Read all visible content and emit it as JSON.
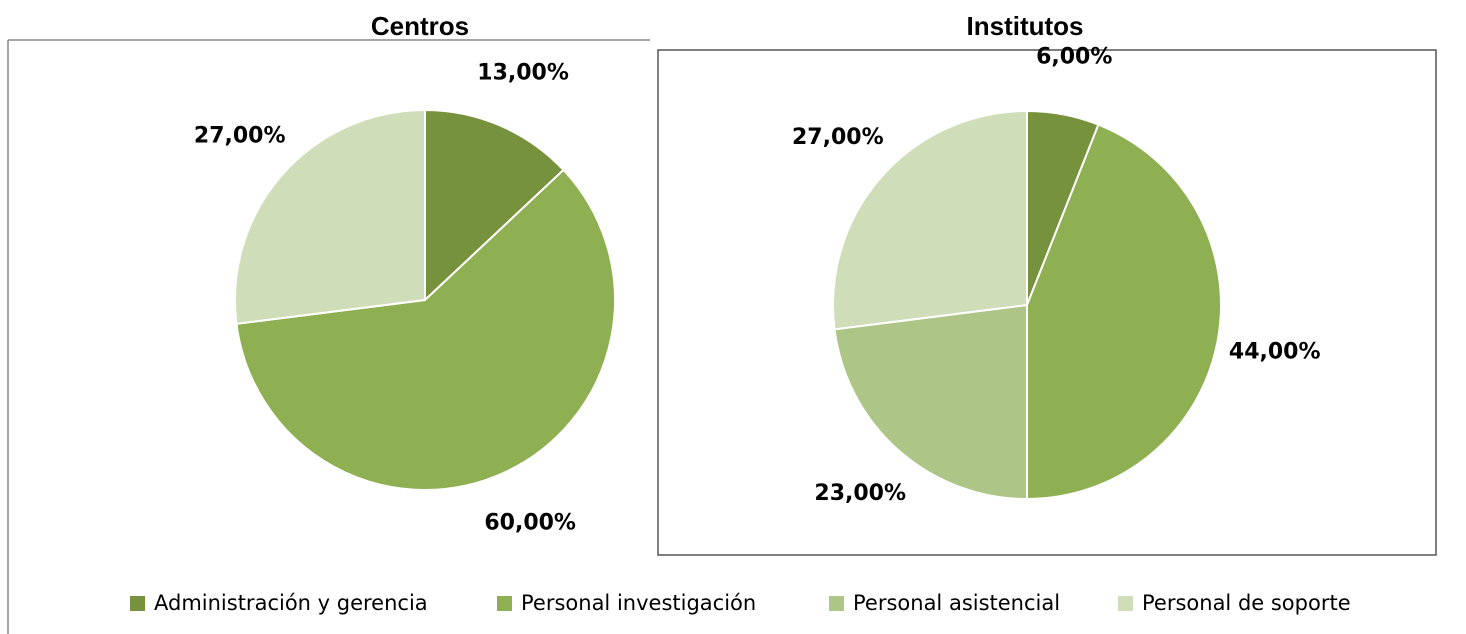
{
  "chart_data": [
    {
      "type": "pie",
      "title": "Centros",
      "categories": [
        "Administración y gerencia",
        "Personal investigación",
        "Personal de soporte"
      ],
      "values": [
        13,
        60,
        27
      ],
      "value_labels": [
        "13,00%",
        "60,00%",
        "27,00%"
      ],
      "colors": [
        "#77923c",
        "#8fb052",
        "#cfddb9"
      ]
    },
    {
      "type": "pie",
      "title": "Institutos",
      "categories": [
        "Administración y gerencia",
        "Personal investigación",
        "Personal asistencial",
        "Personal de soporte"
      ],
      "values": [
        6,
        44,
        23,
        27
      ],
      "value_labels": [
        "6,00%",
        "44,00%",
        "23,00%",
        "27,00%"
      ],
      "colors": [
        "#77923c",
        "#8fb052",
        "#adc687",
        "#cfddb9"
      ]
    }
  ]
}
